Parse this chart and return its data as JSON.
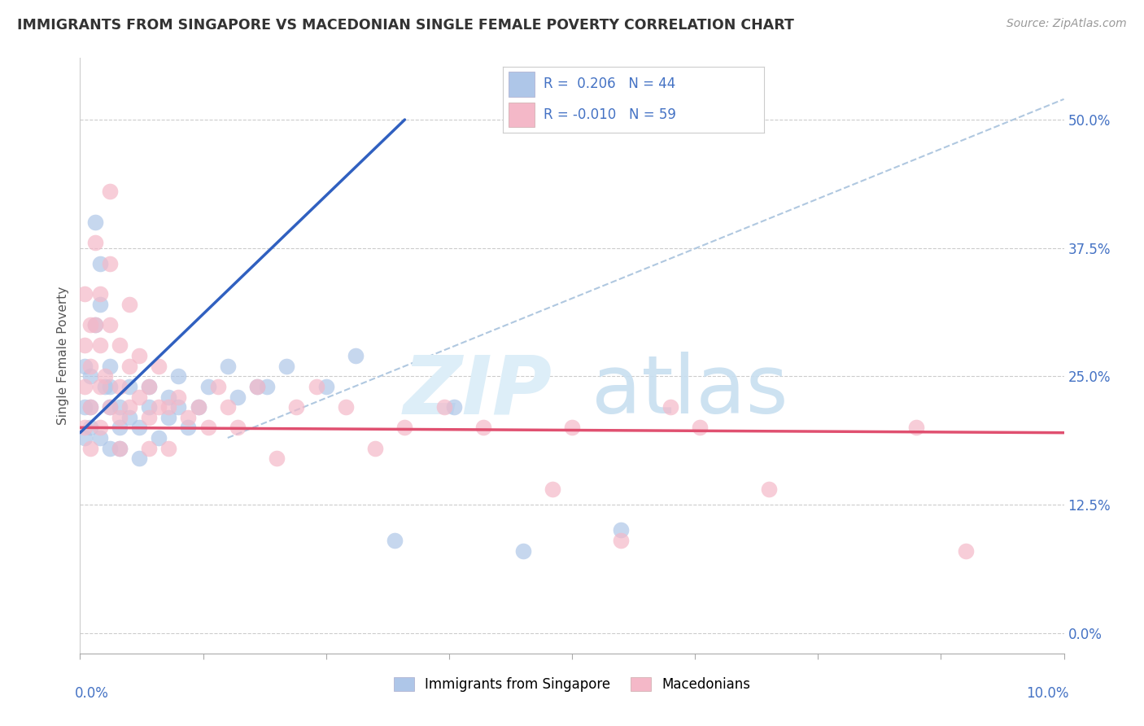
{
  "title": "IMMIGRANTS FROM SINGAPORE VS MACEDONIAN SINGLE FEMALE POVERTY CORRELATION CHART",
  "source": "Source: ZipAtlas.com",
  "ylabel": "Single Female Poverty",
  "xlim": [
    0.0,
    0.1
  ],
  "ylim": [
    -0.02,
    0.56
  ],
  "ytick_positions": [
    0.0,
    0.125,
    0.25,
    0.375,
    0.5
  ],
  "ytick_labels": [
    "0.0%",
    "12.5%",
    "25.0%",
    "37.5%",
    "50.0%"
  ],
  "legend_blue_r": " 0.206",
  "legend_blue_n": "44",
  "legend_pink_r": "-0.010",
  "legend_pink_n": "59",
  "legend_label_blue": "Immigrants from Singapore",
  "legend_label_pink": "Macedonians",
  "blue_dot_color": "#aec6e8",
  "pink_dot_color": "#f4b8c8",
  "blue_line_color": "#3060c0",
  "pink_line_color": "#e05070",
  "gray_dash_color": "#b0c8e0",
  "blue_line_x0": 0.0,
  "blue_line_y0": 0.195,
  "blue_line_x1": 0.033,
  "blue_line_y1": 0.5,
  "pink_line_x0": 0.0,
  "pink_line_y0": 0.2,
  "pink_line_x1": 0.1,
  "pink_line_y1": 0.195,
  "gray_line_x0": 0.015,
  "gray_line_y0": 0.19,
  "gray_line_x1": 0.1,
  "gray_line_y1": 0.52,
  "blue_scatter_x": [
    0.0005,
    0.0005,
    0.0005,
    0.001,
    0.001,
    0.001,
    0.0015,
    0.0015,
    0.002,
    0.002,
    0.002,
    0.0025,
    0.003,
    0.003,
    0.003,
    0.003,
    0.004,
    0.004,
    0.004,
    0.005,
    0.005,
    0.006,
    0.006,
    0.007,
    0.007,
    0.008,
    0.009,
    0.009,
    0.01,
    0.01,
    0.011,
    0.012,
    0.013,
    0.015,
    0.016,
    0.018,
    0.019,
    0.021,
    0.025,
    0.028,
    0.032,
    0.038,
    0.045,
    0.055
  ],
  "blue_scatter_y": [
    0.26,
    0.22,
    0.19,
    0.25,
    0.22,
    0.2,
    0.4,
    0.3,
    0.36,
    0.32,
    0.19,
    0.24,
    0.26,
    0.24,
    0.22,
    0.18,
    0.22,
    0.2,
    0.18,
    0.24,
    0.21,
    0.2,
    0.17,
    0.24,
    0.22,
    0.19,
    0.23,
    0.21,
    0.25,
    0.22,
    0.2,
    0.22,
    0.24,
    0.26,
    0.23,
    0.24,
    0.24,
    0.26,
    0.24,
    0.27,
    0.09,
    0.22,
    0.08,
    0.1
  ],
  "pink_scatter_x": [
    0.0005,
    0.0005,
    0.0005,
    0.0005,
    0.001,
    0.001,
    0.001,
    0.001,
    0.0015,
    0.0015,
    0.002,
    0.002,
    0.002,
    0.002,
    0.0025,
    0.003,
    0.003,
    0.003,
    0.003,
    0.004,
    0.004,
    0.004,
    0.004,
    0.005,
    0.005,
    0.005,
    0.006,
    0.006,
    0.007,
    0.007,
    0.007,
    0.008,
    0.008,
    0.009,
    0.009,
    0.01,
    0.011,
    0.012,
    0.013,
    0.014,
    0.015,
    0.016,
    0.018,
    0.02,
    0.022,
    0.024,
    0.027,
    0.03,
    0.033,
    0.037,
    0.041,
    0.048,
    0.05,
    0.055,
    0.06,
    0.063,
    0.07,
    0.085,
    0.09
  ],
  "pink_scatter_y": [
    0.33,
    0.28,
    0.24,
    0.2,
    0.3,
    0.26,
    0.22,
    0.18,
    0.38,
    0.3,
    0.33,
    0.28,
    0.24,
    0.2,
    0.25,
    0.43,
    0.36,
    0.3,
    0.22,
    0.28,
    0.24,
    0.21,
    0.18,
    0.32,
    0.26,
    0.22,
    0.27,
    0.23,
    0.24,
    0.21,
    0.18,
    0.26,
    0.22,
    0.22,
    0.18,
    0.23,
    0.21,
    0.22,
    0.2,
    0.24,
    0.22,
    0.2,
    0.24,
    0.17,
    0.22,
    0.24,
    0.22,
    0.18,
    0.2,
    0.22,
    0.2,
    0.14,
    0.2,
    0.09,
    0.22,
    0.2,
    0.14,
    0.2,
    0.08
  ]
}
